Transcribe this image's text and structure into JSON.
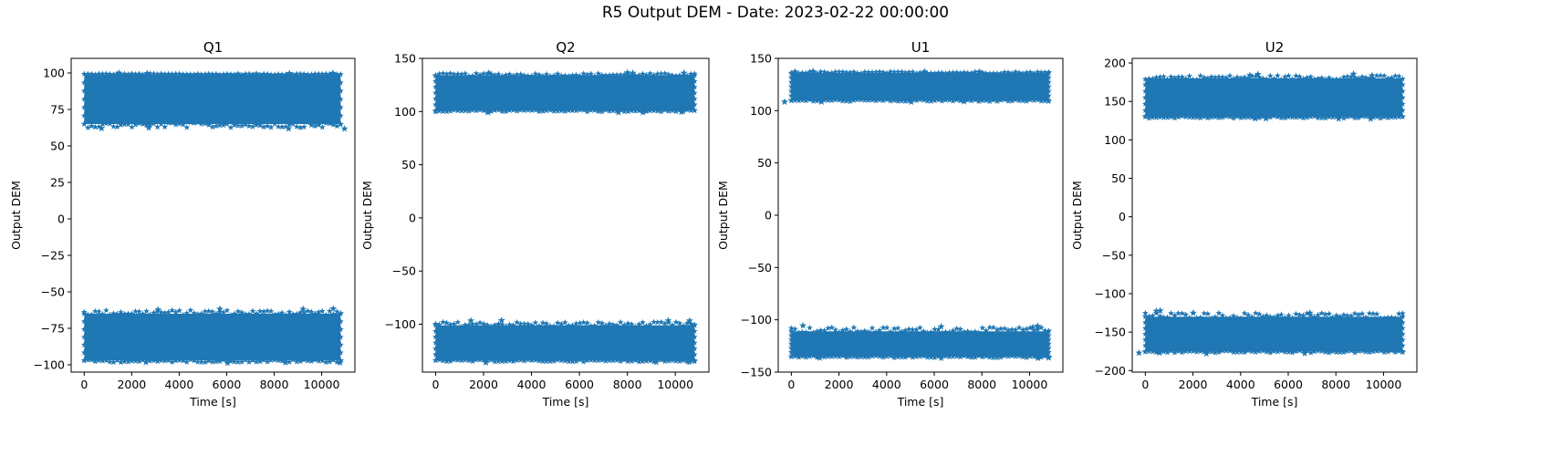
{
  "suptitle": "R5 Output DEM - Date: 2023-02-22 00:00:00",
  "colors": {
    "series": "#1f77b4",
    "axis": "#000000",
    "background": "#ffffff"
  },
  "chart_data": [
    {
      "type": "scatter",
      "marker": "star",
      "title": "Q1",
      "xlabel": "Time [s]",
      "ylabel": "Output DEM",
      "xlim": [
        -550,
        11400
      ],
      "ylim": [
        -105,
        110
      ],
      "xticks": [
        0,
        2000,
        4000,
        6000,
        8000,
        10000
      ],
      "yticks": [
        -100,
        -75,
        -50,
        -25,
        0,
        25,
        50,
        75,
        100
      ],
      "grid": false,
      "x_range": [
        0,
        10800
      ],
      "bands": [
        {
          "low": 65,
          "high": 99,
          "outlier_low": 61,
          "outlier_high": 100
        },
        {
          "low": -97,
          "high": -65,
          "outlier_low": -99,
          "outlier_high": -61
        }
      ]
    },
    {
      "type": "scatter",
      "marker": "star",
      "title": "Q2",
      "xlabel": "Time [s]",
      "ylabel": "Output DEM",
      "xlim": [
        -550,
        11400
      ],
      "ylim": [
        -145,
        150
      ],
      "xticks": [
        0,
        2000,
        4000,
        6000,
        8000,
        10000
      ],
      "yticks": [
        -100,
        -50,
        0,
        50,
        100,
        150
      ],
      "grid": false,
      "x_range": [
        0,
        10800
      ],
      "bands": [
        {
          "low": 101,
          "high": 134,
          "outlier_low": 99,
          "outlier_high": 137
        },
        {
          "low": -134,
          "high": -101,
          "outlier_low": -136,
          "outlier_high": -96
        }
      ]
    },
    {
      "type": "scatter",
      "marker": "star",
      "title": "U1",
      "xlabel": "Time [s]",
      "ylabel": "Output DEM",
      "xlim": [
        -550,
        11400
      ],
      "ylim": [
        -150,
        150
      ],
      "xticks": [
        0,
        2000,
        4000,
        6000,
        8000,
        10000
      ],
      "yticks": [
        -150,
        -100,
        -50,
        0,
        50,
        100,
        150
      ],
      "grid": false,
      "x_range": [
        0,
        10800
      ],
      "bands": [
        {
          "low": 110,
          "high": 136,
          "outlier_low": 108,
          "outlier_high": 138
        },
        {
          "low": -135,
          "high": -111,
          "outlier_low": -137,
          "outlier_high": -105
        }
      ]
    },
    {
      "type": "scatter",
      "marker": "star",
      "title": "U2",
      "xlabel": "Time [s]",
      "ylabel": "Output DEM",
      "xlim": [
        -550,
        11400
      ],
      "ylim": [
        -202,
        206
      ],
      "xticks": [
        0,
        2000,
        4000,
        6000,
        8000,
        10000
      ],
      "yticks": [
        -200,
        -150,
        -100,
        -50,
        0,
        50,
        100,
        150,
        200
      ],
      "grid": false,
      "x_range": [
        0,
        10800
      ],
      "bands": [
        {
          "low": 130,
          "high": 180,
          "outlier_low": 127,
          "outlier_high": 186
        },
        {
          "low": -175,
          "high": -130,
          "outlier_low": -178,
          "outlier_high": -122
        }
      ]
    }
  ]
}
